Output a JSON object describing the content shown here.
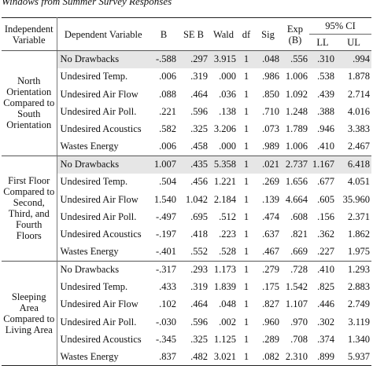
{
  "caption": "Windows from Summer Survey Responses",
  "header": {
    "independent": "Independent Variable",
    "dependent": "Dependent Variable",
    "b": "B",
    "seb": "SE B",
    "wald": "Wald",
    "df": "df",
    "sig": "Sig",
    "exp": "Exp (B)",
    "ci": "95% CI",
    "ll": "LL",
    "ul": "UL"
  },
  "groups": [
    {
      "label": "North Orientation Compared to South Orientation",
      "rows": [
        {
          "dep": "No Drawbacks",
          "b": "-.588",
          "seb": ".297",
          "wald": "3.915",
          "df": "1",
          "sig": ".048",
          "exp": ".556",
          "ll": ".310",
          "ul": ".994",
          "shaded": true
        },
        {
          "dep": "Undesired Temp.",
          "b": ".006",
          "seb": ".319",
          "wald": ".000",
          "df": "1",
          "sig": ".986",
          "exp": "1.006",
          "ll": ".538",
          "ul": "1.878"
        },
        {
          "dep": "Undesired Air Flow",
          "b": ".088",
          "seb": ".464",
          "wald": ".036",
          "df": "1",
          "sig": ".850",
          "exp": "1.092",
          "ll": ".439",
          "ul": "2.714"
        },
        {
          "dep": "Undesired Air Poll.",
          "b": ".221",
          "seb": ".596",
          "wald": ".138",
          "df": "1",
          "sig": ".710",
          "exp": "1.248",
          "ll": ".388",
          "ul": "4.016"
        },
        {
          "dep": "Undesired Acoustics",
          "b": ".582",
          "seb": ".325",
          "wald": "3.206",
          "df": "1",
          "sig": ".073",
          "exp": "1.789",
          "ll": ".946",
          "ul": "3.383"
        },
        {
          "dep": "Wastes Energy",
          "b": ".006",
          "seb": ".458",
          "wald": ".000",
          "df": "1",
          "sig": ".989",
          "exp": "1.006",
          "ll": ".410",
          "ul": "2.467"
        }
      ]
    },
    {
      "label": "First Floor Compared to Second, Third, and Fourth Floors",
      "rows": [
        {
          "dep": "No Drawbacks",
          "b": "1.007",
          "seb": ".435",
          "wald": "5.358",
          "df": "1",
          "sig": ".021",
          "exp": "2.737",
          "ll": "1.167",
          "ul": "6.418",
          "shaded": true
        },
        {
          "dep": "Undesired Temp.",
          "b": ".504",
          "seb": ".456",
          "wald": "1.221",
          "df": "1",
          "sig": ".269",
          "exp": "1.656",
          "ll": ".677",
          "ul": "4.051"
        },
        {
          "dep": "Undesired Air Flow",
          "b": "1.540",
          "seb": "1.042",
          "wald": "2.184",
          "df": "1",
          "sig": ".139",
          "exp": "4.664",
          "ll": ".605",
          "ul": "35.960"
        },
        {
          "dep": "Undesired Air Poll.",
          "b": "-.497",
          "seb": ".695",
          "wald": ".512",
          "df": "1",
          "sig": ".474",
          "exp": ".608",
          "ll": ".156",
          "ul": "2.371"
        },
        {
          "dep": "Undesired Acoustics",
          "b": "-.197",
          "seb": ".418",
          "wald": ".223",
          "df": "1",
          "sig": ".637",
          "exp": ".821",
          "ll": ".362",
          "ul": "1.862"
        },
        {
          "dep": "Wastes Energy",
          "b": "-.401",
          "seb": ".552",
          "wald": ".528",
          "df": "1",
          "sig": ".467",
          "exp": ".669",
          "ll": ".227",
          "ul": "1.975"
        }
      ]
    },
    {
      "label": "Sleeping Area Compared to Living Area",
      "rows": [
        {
          "dep": "No Drawbacks",
          "b": "-.317",
          "seb": ".293",
          "wald": "1.173",
          "df": "1",
          "sig": ".279",
          "exp": ".728",
          "ll": ".410",
          "ul": "1.293"
        },
        {
          "dep": "Undesired Temp.",
          "b": ".433",
          "seb": ".319",
          "wald": "1.839",
          "df": "1",
          "sig": ".175",
          "exp": "1.542",
          "ll": ".825",
          "ul": "2.883"
        },
        {
          "dep": "Undesired Air Flow",
          "b": ".102",
          "seb": ".464",
          "wald": ".048",
          "df": "1",
          "sig": ".827",
          "exp": "1.107",
          "ll": ".446",
          "ul": "2.749"
        },
        {
          "dep": "Undesired Air Poll.",
          "b": "-.030",
          "seb": ".596",
          "wald": ".002",
          "df": "1",
          "sig": ".960",
          "exp": ".970",
          "ll": ".302",
          "ul": "3.119"
        },
        {
          "dep": "Undesired Acoustics",
          "b": "-.345",
          "seb": ".325",
          "wald": "1.125",
          "df": "1",
          "sig": ".289",
          "exp": ".708",
          "ll": ".374",
          "ul": "1.340"
        },
        {
          "dep": "Wastes Energy",
          "b": ".837",
          "seb": ".482",
          "wald": "3.021",
          "df": "1",
          "sig": ".082",
          "exp": "2.310",
          "ll": ".899",
          "ul": "5.937"
        }
      ]
    }
  ]
}
